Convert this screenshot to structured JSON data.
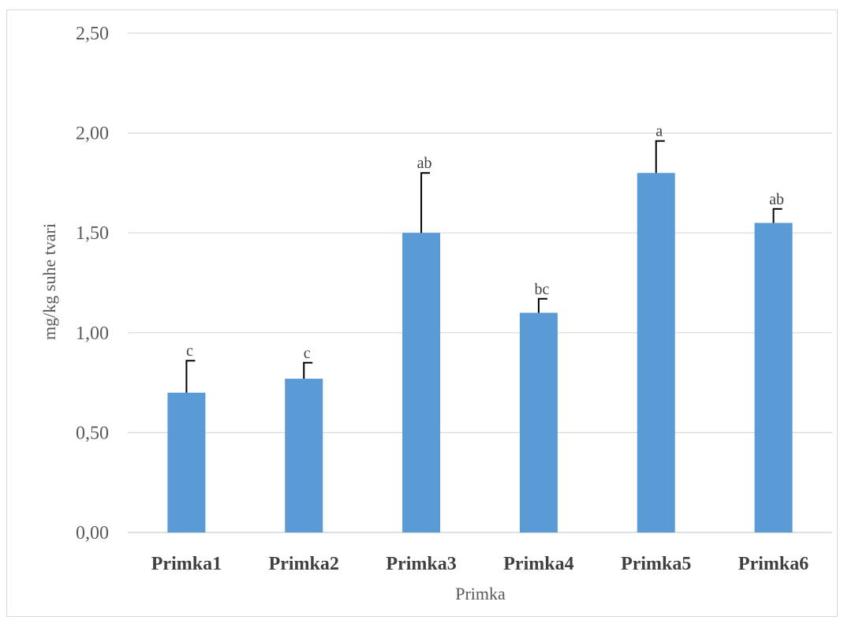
{
  "chart_data": {
    "type": "bar",
    "title": "",
    "xlabel": "Primka",
    "ylabel": "mg/kg suhe tvari",
    "categories": [
      "Primka1",
      "Primka2",
      "Primka3",
      "Primka4",
      "Primka5",
      "Primka6"
    ],
    "values": [
      0.7,
      0.77,
      1.5,
      1.1,
      1.8,
      1.55
    ],
    "error_plus": [
      0.16,
      0.08,
      0.3,
      0.07,
      0.16,
      0.07
    ],
    "annotations": [
      "c",
      "c",
      "ab",
      "bc",
      "a",
      "ab"
    ],
    "yticks": [
      "0,00",
      "0,50",
      "1,00",
      "1,50",
      "2,00",
      "2,50"
    ],
    "ylim": [
      0,
      2.5
    ],
    "grid": true,
    "legend": "none",
    "colors": {
      "bar": "#5b9bd5",
      "grid": "#d9d9d9",
      "error_bar": "#000000"
    }
  }
}
